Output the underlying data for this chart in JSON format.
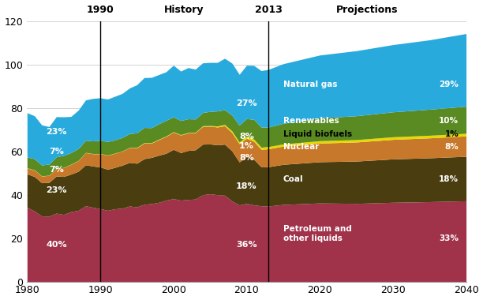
{
  "x_history": [
    1980,
    1981,
    1982,
    1983,
    1984,
    1985,
    1986,
    1987,
    1988,
    1989,
    1990,
    1991,
    1992,
    1993,
    1994,
    1995,
    1996,
    1997,
    1998,
    1999,
    2000,
    2001,
    2002,
    2003,
    2004,
    2005,
    2006,
    2007,
    2008,
    2009,
    2010,
    2011,
    2012,
    2013
  ],
  "x_proj": [
    2013,
    2015,
    2020,
    2025,
    2030,
    2035,
    2040
  ],
  "petroleum_hist": [
    34.2,
    32.5,
    30.2,
    30.1,
    31.5,
    30.9,
    32.2,
    32.8,
    34.9,
    34.2,
    33.6,
    32.8,
    33.5,
    33.8,
    34.8,
    34.4,
    35.6,
    35.9,
    36.5,
    37.5,
    38.2,
    37.5,
    37.8,
    38.0,
    40.0,
    40.4,
    40.0,
    39.8,
    37.1,
    35.3,
    36.0,
    35.3,
    34.9,
    34.8
  ],
  "petroleum_proj": [
    34.8,
    35.5,
    36.2,
    36.0,
    36.5,
    36.8,
    37.2
  ],
  "coal_hist": [
    15.4,
    15.9,
    15.3,
    15.6,
    17.1,
    17.5,
    17.3,
    18.0,
    18.9,
    19.0,
    19.2,
    18.9,
    19.1,
    19.8,
    20.1,
    20.1,
    21.0,
    21.3,
    21.7,
    21.6,
    22.7,
    21.9,
    22.6,
    22.7,
    23.3,
    23.0,
    23.0,
    23.5,
    23.1,
    19.8,
    21.6,
    21.0,
    17.9,
    18.1
  ],
  "coal_proj": [
    18.1,
    18.5,
    19.0,
    19.5,
    20.0,
    20.2,
    20.5
  ],
  "nuclear_hist": [
    2.7,
    3.0,
    3.1,
    3.2,
    3.5,
    4.1,
    4.5,
    4.9,
    5.6,
    5.7,
    6.1,
    6.5,
    6.5,
    6.5,
    6.8,
    7.1,
    7.2,
    6.6,
    7.2,
    7.8,
    8.0,
    8.1,
    8.1,
    7.9,
    8.2,
    8.2,
    8.2,
    8.5,
    8.4,
    8.4,
    8.4,
    8.3,
    8.1,
    8.3
  ],
  "nuclear_proj": [
    8.3,
    8.4,
    8.6,
    8.8,
    9.0,
    9.2,
    9.4
  ],
  "liquid_biofuels_hist": [
    0.1,
    0.1,
    0.1,
    0.1,
    0.1,
    0.1,
    0.1,
    0.1,
    0.1,
    0.1,
    0.1,
    0.1,
    0.1,
    0.1,
    0.1,
    0.2,
    0.2,
    0.2,
    0.2,
    0.2,
    0.2,
    0.2,
    0.2,
    0.2,
    0.3,
    0.3,
    0.5,
    0.6,
    0.8,
    0.8,
    1.0,
    1.0,
    1.0,
    1.0
  ],
  "liquid_biofuels_proj": [
    1.0,
    1.0,
    1.1,
    1.1,
    1.2,
    1.2,
    1.2
  ],
  "renewables_hist": [
    5.0,
    5.1,
    5.0,
    5.1,
    5.3,
    5.5,
    5.3,
    5.5,
    5.6,
    5.8,
    6.1,
    6.2,
    6.1,
    6.2,
    6.4,
    6.7,
    7.0,
    6.9,
    7.1,
    7.2,
    6.8,
    6.5,
    6.3,
    6.1,
    6.1,
    6.5,
    6.9,
    6.8,
    7.3,
    7.8,
    8.1,
    9.1,
    9.3,
    9.0
  ],
  "renewables_proj": [
    9.0,
    9.5,
    10.5,
    11.0,
    11.5,
    12.0,
    12.5
  ],
  "natgas_hist": [
    20.4,
    19.8,
    18.5,
    17.3,
    18.5,
    17.8,
    16.7,
    17.7,
    18.6,
    19.6,
    19.6,
    19.6,
    20.1,
    20.3,
    21.0,
    22.2,
    23.0,
    23.2,
    22.7,
    22.4,
    23.8,
    22.8,
    23.6,
    23.0,
    22.9,
    22.6,
    22.4,
    23.7,
    24.0,
    23.4,
    24.6,
    24.9,
    26.0,
    26.6
  ],
  "natgas_proj": [
    26.6,
    27.5,
    29.0,
    30.0,
    31.0,
    32.0,
    33.5
  ],
  "colors": {
    "petroleum": "#a0324a",
    "coal": "#4a3d10",
    "nuclear": "#c8782a",
    "liquid_biofuels": "#e8d800",
    "renewables": "#5a8a22",
    "natgas": "#29aadd"
  },
  "ylim": [
    0,
    120
  ],
  "yticks": [
    0,
    20,
    40,
    60,
    80,
    100,
    120
  ]
}
